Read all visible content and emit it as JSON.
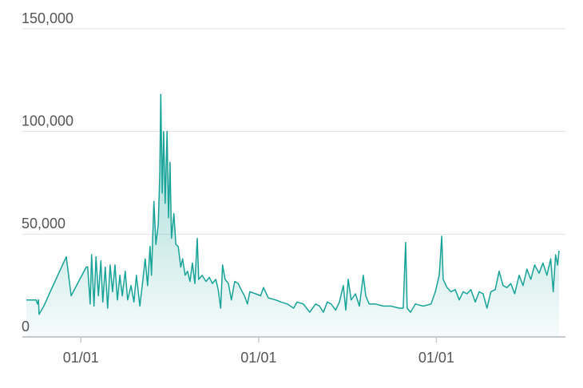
{
  "chart_data": {
    "type": "area",
    "color": "#17a398",
    "x": [
      0,
      20,
      23,
      25,
      26,
      36,
      49,
      82,
      92,
      123,
      126,
      131,
      134,
      139,
      143,
      148,
      153,
      157,
      162,
      167,
      172,
      177,
      182,
      187,
      192,
      197,
      203,
      208,
      215,
      221,
      226,
      233,
      239,
      244,
      249,
      254,
      257,
      262,
      266,
      271,
      274,
      276,
      279,
      282,
      285,
      289,
      292,
      295,
      298,
      303,
      307,
      312,
      317,
      321,
      326,
      331,
      336,
      341,
      346,
      351,
      354,
      361,
      369,
      376,
      382,
      389,
      394,
      399,
      403,
      408,
      415,
      421,
      428,
      435,
      441,
      448,
      454,
      459,
      471,
      481,
      487,
      497,
      512,
      523,
      536,
      549,
      556,
      569,
      582,
      594,
      602,
      610,
      618,
      626,
      635,
      643,
      651,
      656,
      661,
      667,
      676,
      684,
      692,
      697,
      704,
      717,
      733,
      749,
      766,
      774,
      779,
      782,
      789,
      799,
      815,
      831,
      840,
      848,
      853,
      856,
      864,
      872,
      881,
      889,
      897,
      905,
      913,
      922,
      930,
      938,
      946,
      954,
      963,
      971,
      979,
      987,
      995,
      1003,
      1012,
      1020,
      1028,
      1036,
      1044,
      1053,
      1061,
      1069,
      1077,
      1082,
      1087,
      1091,
      1094
    ],
    "values": [
      18000,
      18000,
      16000,
      18000,
      11000,
      15000,
      22000,
      39000,
      20000,
      34000,
      34000,
      16000,
      40000,
      15000,
      39000,
      20000,
      37000,
      17000,
      34000,
      14000,
      35000,
      22000,
      35000,
      18000,
      30000,
      20000,
      32000,
      18000,
      25000,
      17000,
      30000,
      15000,
      27000,
      38000,
      25000,
      44000,
      30000,
      66000,
      45000,
      55000,
      80000,
      118000,
      70000,
      100000,
      65000,
      100000,
      58000,
      85000,
      48000,
      60000,
      45000,
      44000,
      34000,
      38000,
      30000,
      32000,
      27000,
      36000,
      26000,
      48000,
      28000,
      30000,
      27000,
      29000,
      26000,
      28000,
      23000,
      14000,
      35000,
      28000,
      26000,
      18000,
      27000,
      26000,
      23000,
      20000,
      16000,
      22000,
      21000,
      20000,
      24000,
      19000,
      18000,
      17000,
      16000,
      14000,
      17000,
      16000,
      12000,
      16000,
      15000,
      12000,
      17000,
      16000,
      13000,
      17000,
      25000,
      13000,
      28000,
      18000,
      21000,
      15000,
      30000,
      20000,
      16000,
      16000,
      15000,
      15000,
      14000,
      14000,
      46000,
      14000,
      12000,
      16000,
      15000,
      16000,
      22000,
      30000,
      49000,
      28000,
      24000,
      22000,
      23000,
      18000,
      22000,
      21000,
      23000,
      17000,
      22000,
      21000,
      14000,
      22000,
      23000,
      32000,
      25000,
      24000,
      26000,
      21000,
      30000,
      25000,
      33000,
      28000,
      35000,
      31000,
      36000,
      30000,
      38000,
      22000,
      40000,
      35000,
      42000
    ],
    "xlim": [
      0,
      1094
    ],
    "xticks": [
      {
        "value": 112,
        "label": "01/01"
      },
      {
        "value": 477,
        "label": "01/01"
      },
      {
        "value": 842,
        "label": "01/01"
      }
    ],
    "ylim": [
      0,
      150000
    ],
    "yticks": [
      0,
      {
        "value": 50000,
        "label": "50,000"
      },
      {
        "value": 100000,
        "label": "100,000"
      },
      {
        "value": 150000,
        "label": "150,000"
      }
    ],
    "grid": true
  }
}
